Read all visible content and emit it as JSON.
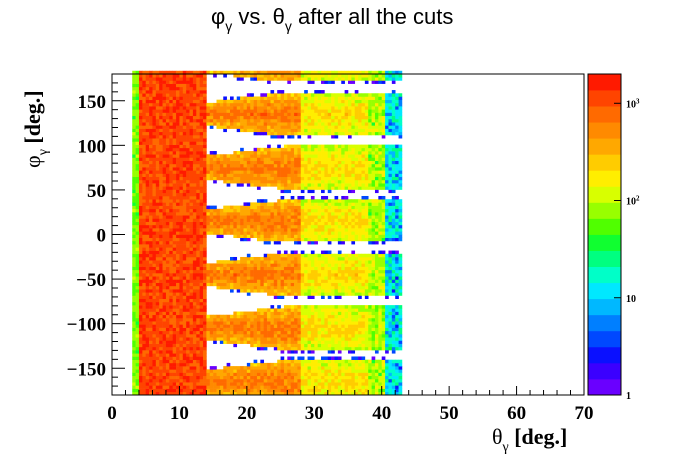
{
  "chart_data": {
    "type": "heatmap",
    "title": {
      "main": "vs.",
      "phi_sym": "φ",
      "theta_sym": "θ",
      "sub": "γ",
      "tail": "after all the cuts"
    },
    "xlabel": {
      "sym": "θ",
      "sub": "γ",
      "unit": "[deg.]"
    },
    "ylabel": {
      "sym": "φ",
      "sub": "γ",
      "unit": "[deg.]"
    },
    "xlim": [
      0,
      70
    ],
    "ylim": [
      -180,
      180
    ],
    "x_ticks": [
      "0",
      "10",
      "20",
      "30",
      "40",
      "50",
      "60",
      "70"
    ],
    "y_ticks": [
      "−150",
      "−100",
      "−50",
      "0",
      "50",
      "100",
      "150"
    ],
    "y_tick_values": [
      -150,
      -100,
      -50,
      0,
      50,
      100,
      150
    ],
    "x_tick_values": [
      0,
      10,
      20,
      30,
      40,
      50,
      60,
      70
    ],
    "z_scale": "log",
    "zlim": [
      1,
      2000
    ],
    "z_ticks": [
      {
        "label": "1",
        "value": 1
      },
      {
        "label": "10",
        "value": 10
      },
      {
        "label": "10",
        "exp": "2",
        "value": 100
      },
      {
        "label": "10",
        "exp": "3",
        "value": 1000
      }
    ],
    "palette_colors": [
      "#6a00ff",
      "#3b00ff",
      "#0a10ff",
      "#0048ff",
      "#007fff",
      "#00b8ff",
      "#00e8ff",
      "#00ffc8",
      "#00ff80",
      "#10ff30",
      "#50ff00",
      "#98ff00",
      "#d8ff00",
      "#ffee00",
      "#ffcc00",
      "#ffa800",
      "#ff8a00",
      "#ff6a00",
      "#ff4400",
      "#ff1a00"
    ],
    "band_phi_centers": [
      -165,
      -105,
      -45,
      15,
      75,
      135
    ],
    "bands": {
      "inner_theta": [
        3.2,
        14.0
      ],
      "outer_theta_max": 43.0,
      "sector_width_deg": 60,
      "gap_halfwidth_deg": 6
    },
    "grid": false
  }
}
